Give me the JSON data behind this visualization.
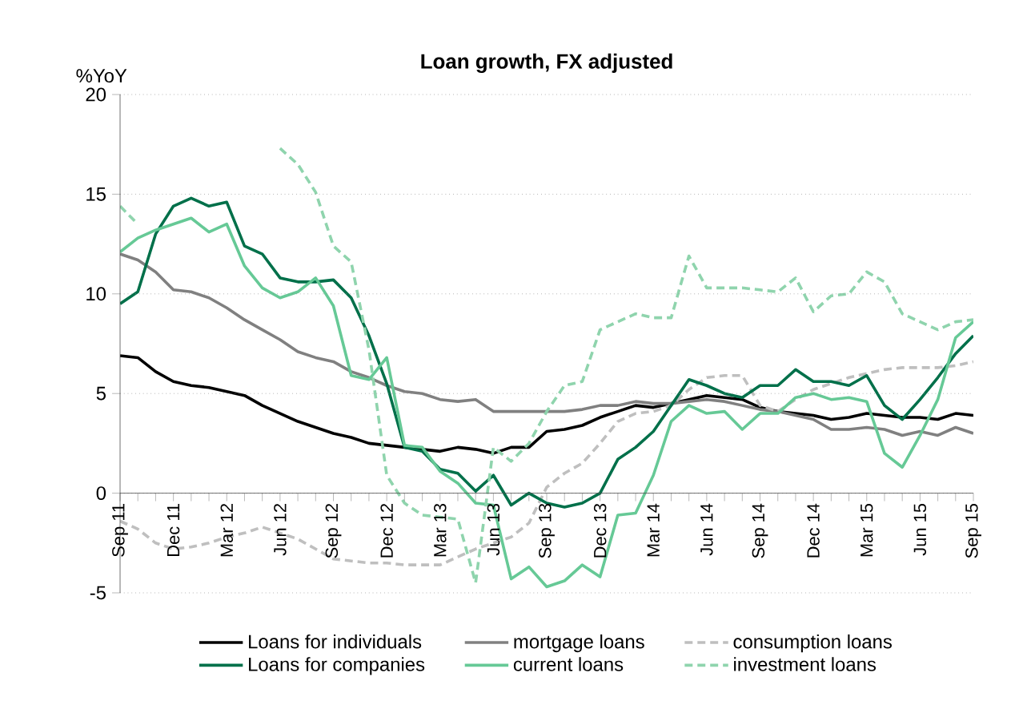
{
  "chart_data": {
    "type": "line",
    "title": "Loan growth, FX adjusted",
    "ylabel": "%YoY",
    "categories": [
      "Sep 11",
      null,
      null,
      "Dec 11",
      null,
      null,
      "Mar 12",
      null,
      null,
      "Jun 12",
      null,
      null,
      "Sep 12",
      null,
      null,
      "Dec 12",
      null,
      null,
      "Mar 13",
      null,
      null,
      "Jun 13",
      null,
      null,
      "Sep 13",
      null,
      null,
      "Dec 13",
      null,
      null,
      "Mar 14",
      null,
      null,
      "Jun 14",
      null,
      null,
      "Sep 14",
      null,
      null,
      "Dec 14",
      null,
      null,
      "Mar 15",
      null,
      null,
      "Jun 15",
      null,
      null,
      "Sep 15"
    ],
    "ylim": [
      -5,
      20
    ],
    "yticks": [
      -5,
      0,
      5,
      10,
      15,
      20
    ],
    "grid": "y",
    "legend": "bottom",
    "marker": "none",
    "series": [
      {
        "name": "Loans for individuals",
        "color": "#000000",
        "line_style": "solid",
        "values": [
          6.9,
          6.8,
          6.1,
          5.6,
          5.4,
          5.3,
          5.1,
          4.9,
          4.4,
          4.0,
          3.6,
          3.3,
          3.0,
          2.8,
          2.5,
          2.4,
          2.3,
          2.2,
          2.1,
          2.3,
          2.2,
          2.0,
          2.3,
          2.3,
          3.1,
          3.2,
          3.4,
          3.8,
          4.1,
          4.4,
          4.3,
          4.5,
          4.7,
          4.9,
          4.8,
          4.7,
          4.3,
          4.1,
          4.0,
          3.9,
          3.7,
          3.8,
          4.0,
          3.9,
          3.8,
          3.8,
          3.7,
          4.0,
          3.9
        ]
      },
      {
        "name": "mortgage loans",
        "color": "#808080",
        "line_style": "solid",
        "values": [
          12.0,
          11.7,
          11.1,
          10.2,
          10.1,
          9.8,
          9.3,
          8.7,
          8.2,
          7.7,
          7.1,
          6.8,
          6.6,
          6.1,
          5.8,
          5.4,
          5.1,
          5.0,
          4.7,
          4.6,
          4.7,
          4.1,
          4.1,
          4.1,
          4.1,
          4.1,
          4.2,
          4.4,
          4.4,
          4.6,
          4.5,
          4.5,
          4.6,
          4.7,
          4.6,
          4.4,
          4.2,
          4.1,
          3.9,
          3.7,
          3.2,
          3.2,
          3.3,
          3.2,
          2.9,
          3.1,
          2.9,
          3.3,
          3.0
        ]
      },
      {
        "name": "consumption loans",
        "color": "#bfbfbf",
        "line_style": "dashed",
        "values": [
          -1.4,
          -1.8,
          -2.5,
          -2.8,
          -2.7,
          -2.5,
          -2.2,
          -2.0,
          -1.7,
          -2.0,
          -2.3,
          -2.8,
          -3.3,
          -3.4,
          -3.5,
          -3.5,
          -3.6,
          -3.6,
          -3.6,
          -3.2,
          -2.8,
          -2.5,
          -2.2,
          -1.5,
          0.3,
          1.0,
          1.5,
          2.5,
          3.6,
          4.0,
          4.1,
          4.4,
          5.2,
          5.8,
          5.9,
          5.9,
          4.4,
          4.1,
          4.7,
          5.2,
          5.5,
          5.8,
          6.0,
          6.2,
          6.3,
          6.3,
          6.3,
          6.4,
          6.6
        ]
      },
      {
        "name": "Loans for companies",
        "color": "#00704a",
        "line_style": "solid",
        "values": [
          9.5,
          10.1,
          13.0,
          14.4,
          14.8,
          14.4,
          14.6,
          12.4,
          12.0,
          10.8,
          10.6,
          10.6,
          10.7,
          9.8,
          7.9,
          5.5,
          2.3,
          2.1,
          1.2,
          1.0,
          0.1,
          0.9,
          -0.6,
          0.0,
          -0.5,
          -0.7,
          -0.5,
          0.0,
          1.7,
          2.3,
          3.1,
          4.4,
          5.7,
          5.4,
          5.0,
          4.8,
          5.4,
          5.4,
          6.2,
          5.6,
          5.6,
          5.4,
          5.9,
          4.4,
          3.7,
          4.7,
          5.8,
          7.0,
          7.9
        ]
      },
      {
        "name": "current loans",
        "color": "#66c996",
        "line_style": "solid",
        "values": [
          12.1,
          12.8,
          13.2,
          13.5,
          13.8,
          13.1,
          13.5,
          11.4,
          10.3,
          9.8,
          10.1,
          10.8,
          9.4,
          5.9,
          5.7,
          6.8,
          2.4,
          2.3,
          1.1,
          0.5,
          -0.5,
          -0.6,
          -4.3,
          -3.7,
          -4.7,
          -4.4,
          -3.6,
          -4.2,
          -1.1,
          -1.0,
          0.9,
          3.6,
          4.4,
          4.0,
          4.1,
          3.2,
          4.0,
          4.0,
          4.8,
          5.0,
          4.7,
          4.8,
          4.6,
          2.0,
          1.3,
          2.9,
          4.7,
          7.8,
          8.6
        ]
      },
      {
        "name": "investment loans",
        "color": "#8fd4ad",
        "line_style": "dashed",
        "values": [
          14.4,
          13.5,
          null,
          null,
          null,
          null,
          null,
          null,
          null,
          17.3,
          16.5,
          15.1,
          12.4,
          11.6,
          7.2,
          0.9,
          -0.5,
          -1.1,
          -1.2,
          -1.3,
          -4.5,
          2.3,
          1.6,
          2.5,
          4.1,
          5.4,
          5.6,
          8.2,
          8.6,
          9.0,
          8.8,
          8.8,
          11.9,
          10.3,
          10.3,
          10.3,
          10.2,
          10.1,
          10.8,
          9.1,
          9.9,
          10.0,
          11.1,
          10.6,
          9.0,
          8.6,
          8.2,
          8.6,
          8.7
        ]
      }
    ]
  }
}
